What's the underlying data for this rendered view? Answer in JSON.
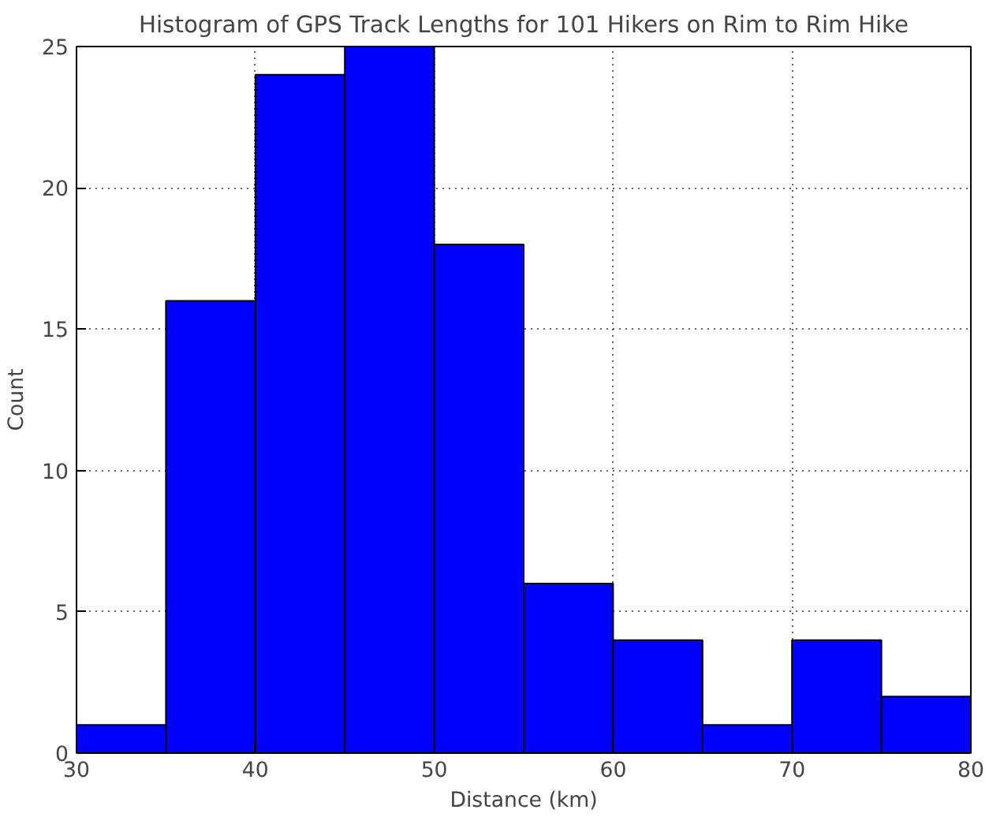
{
  "chart_data": {
    "type": "histogram",
    "title": "Histogram of GPS Track Lengths for 101 Hikers on Rim to Rim Hike",
    "xlabel": "Distance (km)",
    "ylabel": "Count",
    "bins": [
      30,
      35,
      40,
      45,
      50,
      55,
      60,
      65,
      70,
      75,
      80
    ],
    "values": [
      1,
      16,
      24,
      25,
      18,
      6,
      4,
      1,
      4,
      2
    ],
    "color": "#0000ff",
    "xlim": [
      30,
      80
    ],
    "ylim": [
      0,
      25
    ],
    "xticks": [
      30,
      40,
      50,
      60,
      70,
      80
    ],
    "yticks": [
      0,
      5,
      10,
      15,
      20,
      25
    ],
    "grid": true
  }
}
